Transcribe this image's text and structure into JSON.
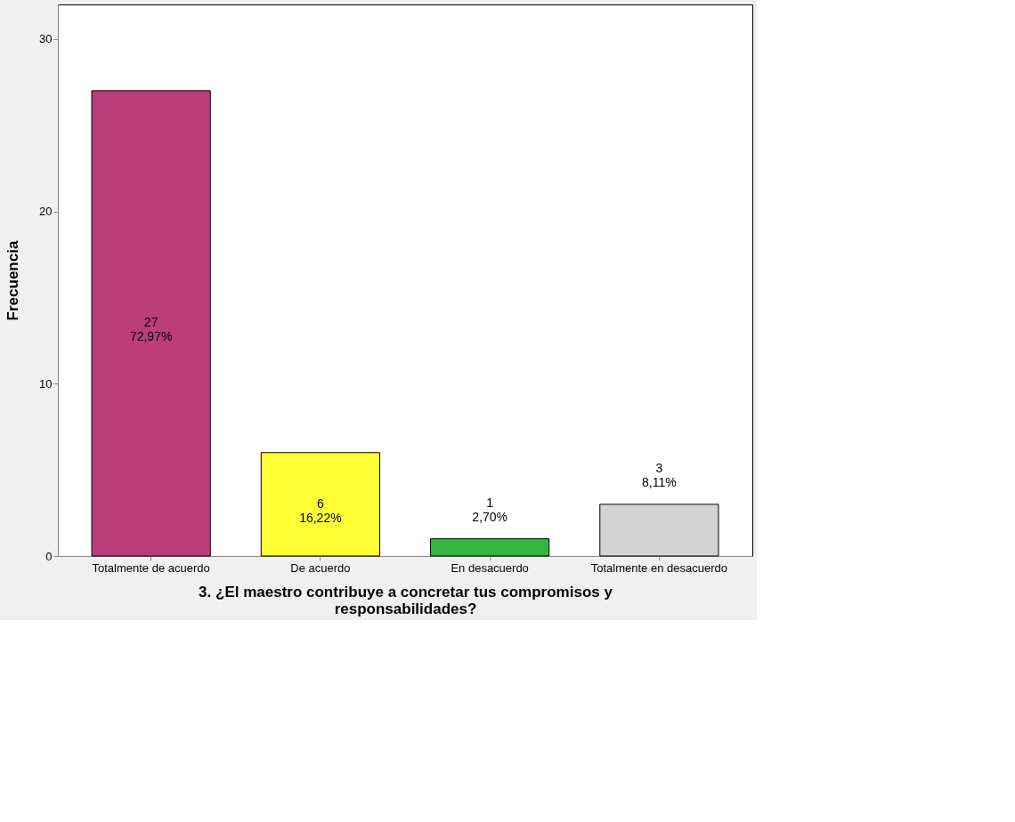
{
  "chart_data": {
    "type": "bar",
    "xlabel": "3. ¿El maestro contribuye a concretar tus compromisos y responsabilidades?",
    "ylabel": "Frecuencia",
    "categories": [
      "Totalmente de acuerdo",
      "De acuerdo",
      "En desacuerdo",
      "Totalmente en desacuerdo"
    ],
    "values": [
      27,
      6,
      1,
      3
    ],
    "colors": [
      "#bb3d7b",
      "#ffff33",
      "#33b540",
      "#d3d3d3"
    ],
    "value_labels": [
      "27\n72,97%",
      "6\n16,22%",
      "1\n2,70%",
      "3\n8,11%"
    ],
    "ylim": [
      0,
      32
    ],
    "yticks": [
      0,
      10,
      20,
      30
    ],
    "grid": false
  }
}
